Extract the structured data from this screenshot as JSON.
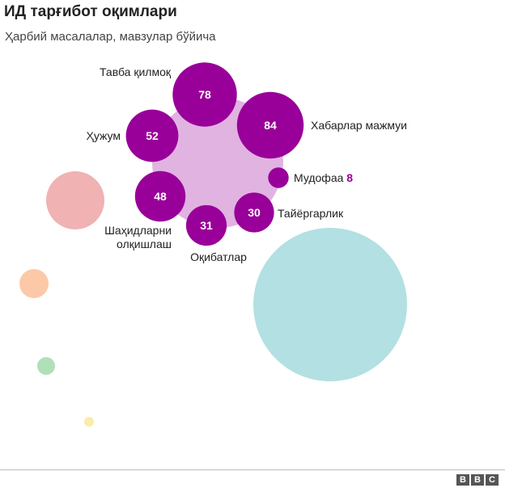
{
  "title": "ИД тарғибот оқимлари",
  "subtitle": "Ҳарбий масалалар, мавзулар бўйича",
  "chart_data": {
    "type": "bubble",
    "title": "ИД тарғибот оқимлари",
    "subtitle": "Ҳарбий масалалар, мавзулар бўйича",
    "parent_category": "Ҳарбий масалалар",
    "series": [
      {
        "name": "Хабарлар мажмуи",
        "value": 84,
        "label_lines": [
          "Хабарлар мажмуи"
        ]
      },
      {
        "name": "Тавба қилмоқ",
        "value": 78,
        "label_lines": [
          "Тавба қилмоқ"
        ]
      },
      {
        "name": "Ҳужум",
        "value": 52,
        "label_lines": [
          "Ҳужум"
        ]
      },
      {
        "name": "Шаҳидларни олқишлаш",
        "value": 48,
        "label_lines": [
          "Шаҳидларни",
          "олқишлаш"
        ]
      },
      {
        "name": "Оқибатлар",
        "value": 31,
        "label_lines": [
          "Оқибатлар"
        ]
      },
      {
        "name": "Тайёргарлик",
        "value": 30,
        "label_lines": [
          "Тайёргарлик"
        ]
      },
      {
        "name": "Мудофаа",
        "value": 8,
        "label_lines": [
          "Мудофаа"
        ]
      }
    ],
    "other_categories": [
      {
        "color": "#b3e0e3"
      },
      {
        "color": "#f0b2b3"
      },
      {
        "color": "#fcc9a8"
      },
      {
        "color": "#b0e0b8"
      },
      {
        "color": "#fbeca8"
      }
    ]
  },
  "colors": {
    "bubble": "#990099",
    "parent": "#e1b3e1",
    "small_value": "#990099",
    "text": "#222222"
  },
  "brand": "BBC",
  "brand_letters": [
    "B",
    "B",
    "C"
  ]
}
